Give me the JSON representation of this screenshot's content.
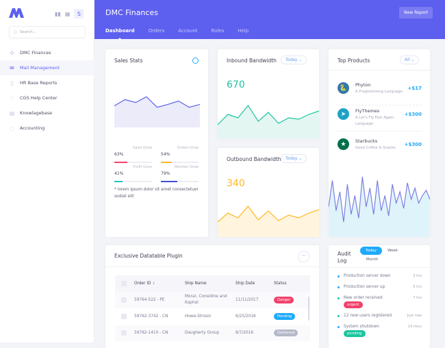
{
  "sidebar": {
    "search_placeholder": "Search...",
    "user_initial": "S",
    "items": [
      {
        "label": "DMC Finances",
        "icon": "grid-icon"
      },
      {
        "label": "Mail Management",
        "icon": "mail-icon",
        "active": true
      },
      {
        "label": "HR Base Reports",
        "icon": "report-icon"
      },
      {
        "label": "CGS Help Center",
        "icon": "help-icon"
      },
      {
        "label": "Knowlagebase",
        "icon": "document-icon"
      },
      {
        "label": "Accounting",
        "icon": "circle-icon"
      }
    ]
  },
  "header": {
    "title": "DMC Finances",
    "new_report": "New Report",
    "tabs": [
      "Dashboard",
      "Orders",
      "Account",
      "Roles",
      "Help"
    ],
    "active_tab": "Dashboard",
    "color": "#5d5fef"
  },
  "sales": {
    "title": "Sales Stats",
    "series": [
      45,
      58,
      52,
      64,
      42,
      48,
      55,
      42,
      48
    ],
    "stats": [
      {
        "pct": "63%",
        "label": "Sales Grow",
        "value": 63,
        "color": "#f1416c"
      },
      {
        "pct": "54%",
        "label": "Orders Grow",
        "value": 54,
        "color": "#ffb822"
      },
      {
        "pct": "41%",
        "label": "Profit Grow",
        "value": 41,
        "color": "#1bc5bd"
      },
      {
        "pct": "79%",
        "label": "Member Grow",
        "value": 79,
        "color": "#3d4fd6"
      }
    ],
    "note": "* lorem ipsum dolor sit amet consectetuer sodiat elit"
  },
  "inbound": {
    "title": "Inbound Bandwidth",
    "filter": "Today",
    "value": "670",
    "color": "#1bc5a0",
    "series": [
      20,
      35,
      30,
      48,
      25,
      38,
      22,
      30,
      28,
      35,
      40
    ]
  },
  "outbound": {
    "title": "Outbound Bandwidth",
    "filter": "Today",
    "value": "340",
    "color": "#ffb822",
    "series": [
      22,
      35,
      28,
      45,
      25,
      38,
      24,
      32,
      28,
      35,
      40
    ]
  },
  "products": {
    "title": "Top Products",
    "filter": "All",
    "items": [
      {
        "name": "Phyton",
        "desc": "A Programming Language",
        "value": "+$17",
        "icon": "python-logo-icon"
      },
      {
        "name": "FlyThemes",
        "desc": "A Let's Fly Fast Again Language",
        "value": "+$300",
        "icon": "paper-plane-icon"
      },
      {
        "name": "Starbucks",
        "desc": "Good Coffee & Snacks",
        "value": "+$300",
        "icon": "starbucks-logo-icon"
      }
    ],
    "series": [
      40,
      75,
      35,
      60,
      20,
      70,
      30,
      55,
      25,
      80,
      40,
      65,
      30,
      75,
      35,
      55,
      28,
      70,
      45,
      60,
      38,
      72,
      50,
      65,
      45,
      55,
      62,
      50
    ],
    "color": "#7c7ee0"
  },
  "datatable": {
    "title": "Exclusive Datatable Plugin",
    "columns": [
      "Order ID",
      "Ship Name",
      "Ship Date",
      "Status"
    ],
    "rows": [
      {
        "id": "59764-522 - PE",
        "name": "Morar, Considine and Kuphal",
        "date": "11/11/2017",
        "status": "Danger",
        "color": "#f1416c"
      },
      {
        "id": "59762-3742 - CN",
        "name": "Howe-Strosin",
        "date": "6/25/2016",
        "status": "Pending",
        "color": "#1eaafc"
      },
      {
        "id": "59762-1410 - CN",
        "name": "Daugherty Group",
        "date": "8/7/2016",
        "status": "Delivered",
        "color": "#b5b8c8"
      }
    ]
  },
  "audit": {
    "title": "Audit Log",
    "tabs": [
      "Today",
      "Week",
      "Month"
    ],
    "active_tab": "Today",
    "items": [
      {
        "text": "Production server down",
        "time": "3 hrs",
        "dot": "#1eaafc"
      },
      {
        "text": "Production server up",
        "time": "5 hrs",
        "dot": "#1eaafc"
      },
      {
        "text": "New order received",
        "time": "7 hrs",
        "dot": "#1bc5a0",
        "badge": "urgent",
        "badge_color": "#f1416c"
      },
      {
        "text": "12 new users registered",
        "time": "Just now",
        "dot": "#1bc5a0"
      },
      {
        "text": "System shutdown",
        "time": "14 mins",
        "dot": "#1eaafc",
        "badge": "pending",
        "badge_color": "#1bc5a0"
      }
    ]
  }
}
